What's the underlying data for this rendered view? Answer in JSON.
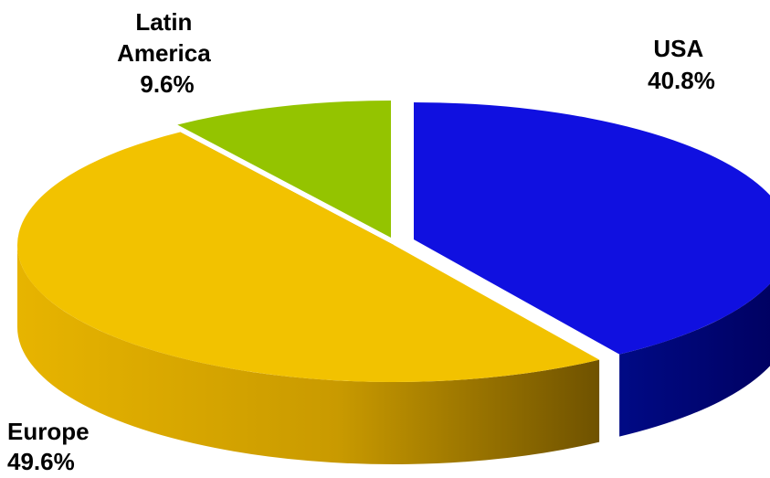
{
  "chart_data": {
    "type": "pie",
    "style": "3d-exploded",
    "title": "",
    "legend": "none",
    "slices": [
      {
        "label_lines": [
          "USA"
        ],
        "value": 40.8,
        "value_text": "40.8%",
        "color": "#1010e0",
        "side_color": "#00007a"
      },
      {
        "label_lines": [
          "Europe"
        ],
        "value": 49.6,
        "value_text": "49.6%",
        "color": "#f2c200",
        "side_color": "#b08a00"
      },
      {
        "label_lines": [
          "Latin",
          "America"
        ],
        "value": 9.6,
        "value_text": "9.6%",
        "color": "#94c400",
        "side_color": "#3e5a00"
      }
    ]
  }
}
